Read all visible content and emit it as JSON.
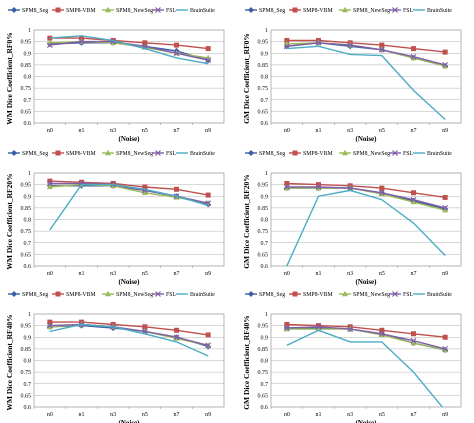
{
  "colors": {
    "SPM8_Seg": "#3b5fa3",
    "SMP8-VBM": "#c0504d",
    "SPM8_NewSeg": "#9bbb59",
    "FSL": "#7f5fa6",
    "BrainSuite": "#4bacc6"
  },
  "chart_data": [
    {
      "type": "line",
      "ylabel": "WM Dice Coefficient_RF0%",
      "xlabel": "(Noise)",
      "categories": [
        "n0",
        "n1",
        "n3",
        "n5",
        "n7",
        "n9"
      ],
      "ylim": [
        0.6,
        1
      ],
      "yticks": [
        0.6,
        0.65,
        0.7,
        0.75,
        0.8,
        0.85,
        0.9,
        0.95,
        1
      ],
      "grid": true,
      "legend": "top",
      "series": [
        {
          "name": "SPM8_Seg",
          "marker": "diamond",
          "values": [
            0.94,
            0.945,
            0.945,
            0.93,
            0.91,
            0.87
          ]
        },
        {
          "name": "SMP8-VBM",
          "marker": "square",
          "values": [
            0.965,
            0.965,
            0.955,
            0.945,
            0.935,
            0.92
          ]
        },
        {
          "name": "SPM8_NewSeg",
          "marker": "triangle",
          "values": [
            0.945,
            0.95,
            0.945,
            0.925,
            0.9,
            0.88
          ]
        },
        {
          "name": "FSL",
          "marker": "x",
          "values": [
            0.935,
            0.95,
            0.95,
            0.93,
            0.9,
            0.87
          ]
        },
        {
          "name": "BrainSuite",
          "marker": "none",
          "values": [
            0.965,
            0.975,
            0.955,
            0.92,
            0.88,
            0.855
          ]
        }
      ]
    },
    {
      "type": "line",
      "ylabel": "GM Dice Coefficient_RF0%",
      "xlabel": "(Noise)",
      "categories": [
        "n0",
        "n1",
        "n3",
        "n5",
        "n7",
        "n9"
      ],
      "ylim": [
        0.6,
        1
      ],
      "yticks": [
        0.6,
        0.65,
        0.7,
        0.75,
        0.8,
        0.85,
        0.9,
        0.95,
        1
      ],
      "grid": true,
      "legend": "top",
      "series": [
        {
          "name": "SPM8_Seg",
          "marker": "diamond",
          "values": [
            0.93,
            0.945,
            0.93,
            0.915,
            0.88,
            0.845
          ]
        },
        {
          "name": "SMP8-VBM",
          "marker": "square",
          "values": [
            0.955,
            0.955,
            0.945,
            0.935,
            0.92,
            0.905
          ]
        },
        {
          "name": "SPM8_NewSeg",
          "marker": "triangle",
          "values": [
            0.94,
            0.945,
            0.935,
            0.915,
            0.88,
            0.845
          ]
        },
        {
          "name": "FSL",
          "marker": "x",
          "values": [
            0.93,
            0.945,
            0.935,
            0.915,
            0.885,
            0.85
          ]
        },
        {
          "name": "BrainSuite",
          "marker": "none",
          "values": [
            0.92,
            0.93,
            0.895,
            0.89,
            0.74,
            0.615
          ]
        }
      ]
    },
    {
      "type": "line",
      "ylabel": "WM Dice Coefficient_RF20%",
      "xlabel": "(Noise)",
      "categories": [
        "n0",
        "n1",
        "n3",
        "n5",
        "n7",
        "n9"
      ],
      "ylim": [
        0.6,
        1
      ],
      "yticks": [
        0.6,
        0.65,
        0.7,
        0.75,
        0.8,
        0.85,
        0.9,
        0.95,
        1
      ],
      "grid": true,
      "legend": "top",
      "series": [
        {
          "name": "SPM8_Seg",
          "marker": "diamond",
          "values": [
            0.945,
            0.945,
            0.945,
            0.925,
            0.9,
            0.865
          ]
        },
        {
          "name": "SMP8-VBM",
          "marker": "square",
          "values": [
            0.965,
            0.96,
            0.955,
            0.94,
            0.93,
            0.905
          ]
        },
        {
          "name": "SPM8_NewSeg",
          "marker": "triangle",
          "values": [
            0.94,
            0.95,
            0.945,
            0.915,
            0.895,
            0.87
          ]
        },
        {
          "name": "FSL",
          "marker": "x",
          "values": [
            0.955,
            0.955,
            0.95,
            0.925,
            0.9,
            0.87
          ]
        },
        {
          "name": "BrainSuite",
          "marker": "none",
          "values": [
            0.755,
            0.95,
            0.95,
            0.93,
            0.9,
            0.86
          ]
        }
      ]
    },
    {
      "type": "line",
      "ylabel": "GM Dice Coefficient_RF20%",
      "xlabel": "(Noise)",
      "categories": [
        "n0",
        "n1",
        "n3",
        "n5",
        "n7",
        "n9"
      ],
      "ylim": [
        0.6,
        1
      ],
      "yticks": [
        0.6,
        0.65,
        0.7,
        0.75,
        0.8,
        0.85,
        0.9,
        0.95,
        1
      ],
      "grid": true,
      "legend": "top",
      "series": [
        {
          "name": "SPM8_Seg",
          "marker": "diamond",
          "values": [
            0.935,
            0.935,
            0.935,
            0.915,
            0.88,
            0.845
          ]
        },
        {
          "name": "SMP8-VBM",
          "marker": "square",
          "values": [
            0.955,
            0.95,
            0.945,
            0.935,
            0.915,
            0.895
          ]
        },
        {
          "name": "SPM8_NewSeg",
          "marker": "triangle",
          "values": [
            0.935,
            0.935,
            0.935,
            0.91,
            0.875,
            0.84
          ]
        },
        {
          "name": "FSL",
          "marker": "x",
          "values": [
            0.94,
            0.94,
            0.935,
            0.915,
            0.885,
            0.85
          ]
        },
        {
          "name": "BrainSuite",
          "marker": "none",
          "values": [
            0.6,
            0.9,
            0.925,
            0.885,
            0.785,
            0.645
          ]
        }
      ]
    },
    {
      "type": "line",
      "ylabel": "WM Dice Coefficient_RF40%",
      "xlabel": "(Noise)",
      "categories": [
        "n0",
        "n1",
        "n3",
        "n5",
        "n7",
        "n9"
      ],
      "ylim": [
        0.6,
        1
      ],
      "yticks": [
        0.6,
        0.65,
        0.7,
        0.75,
        0.8,
        0.85,
        0.9,
        0.95,
        1
      ],
      "grid": true,
      "legend": "top",
      "series": [
        {
          "name": "SPM8_Seg",
          "marker": "diamond",
          "values": [
            0.945,
            0.95,
            0.94,
            0.925,
            0.9,
            0.86
          ]
        },
        {
          "name": "SMP8-VBM",
          "marker": "square",
          "values": [
            0.965,
            0.965,
            0.955,
            0.945,
            0.93,
            0.91
          ]
        },
        {
          "name": "SPM8_NewSeg",
          "marker": "triangle",
          "values": [
            0.945,
            0.955,
            0.945,
            0.925,
            0.895,
            0.865
          ]
        },
        {
          "name": "FSL",
          "marker": "x",
          "values": [
            0.95,
            0.955,
            0.945,
            0.925,
            0.9,
            0.865
          ]
        },
        {
          "name": "BrainSuite",
          "marker": "none",
          "values": [
            0.925,
            0.955,
            0.945,
            0.915,
            0.88,
            0.82
          ]
        }
      ]
    },
    {
      "type": "line",
      "ylabel": "GM Dice Coefficient_RF40%",
      "xlabel": "(Noise)",
      "categories": [
        "n0",
        "n1",
        "n3",
        "n5",
        "n7",
        "n9"
      ],
      "ylim": [
        0.6,
        1
      ],
      "yticks": [
        0.6,
        0.65,
        0.7,
        0.75,
        0.8,
        0.85,
        0.9,
        0.95,
        1
      ],
      "grid": true,
      "legend": "top",
      "series": [
        {
          "name": "SPM8_Seg",
          "marker": "diamond",
          "values": [
            0.94,
            0.94,
            0.935,
            0.915,
            0.875,
            0.845
          ]
        },
        {
          "name": "SMP8-VBM",
          "marker": "square",
          "values": [
            0.955,
            0.95,
            0.945,
            0.93,
            0.915,
            0.9
          ]
        },
        {
          "name": "SPM8_NewSeg",
          "marker": "triangle",
          "values": [
            0.935,
            0.935,
            0.935,
            0.91,
            0.875,
            0.845
          ]
        },
        {
          "name": "FSL",
          "marker": "x",
          "values": [
            0.94,
            0.945,
            0.935,
            0.915,
            0.885,
            0.85
          ]
        },
        {
          "name": "BrainSuite",
          "marker": "none",
          "values": [
            0.865,
            0.93,
            0.88,
            0.88,
            0.75,
            0.585
          ]
        }
      ]
    }
  ]
}
